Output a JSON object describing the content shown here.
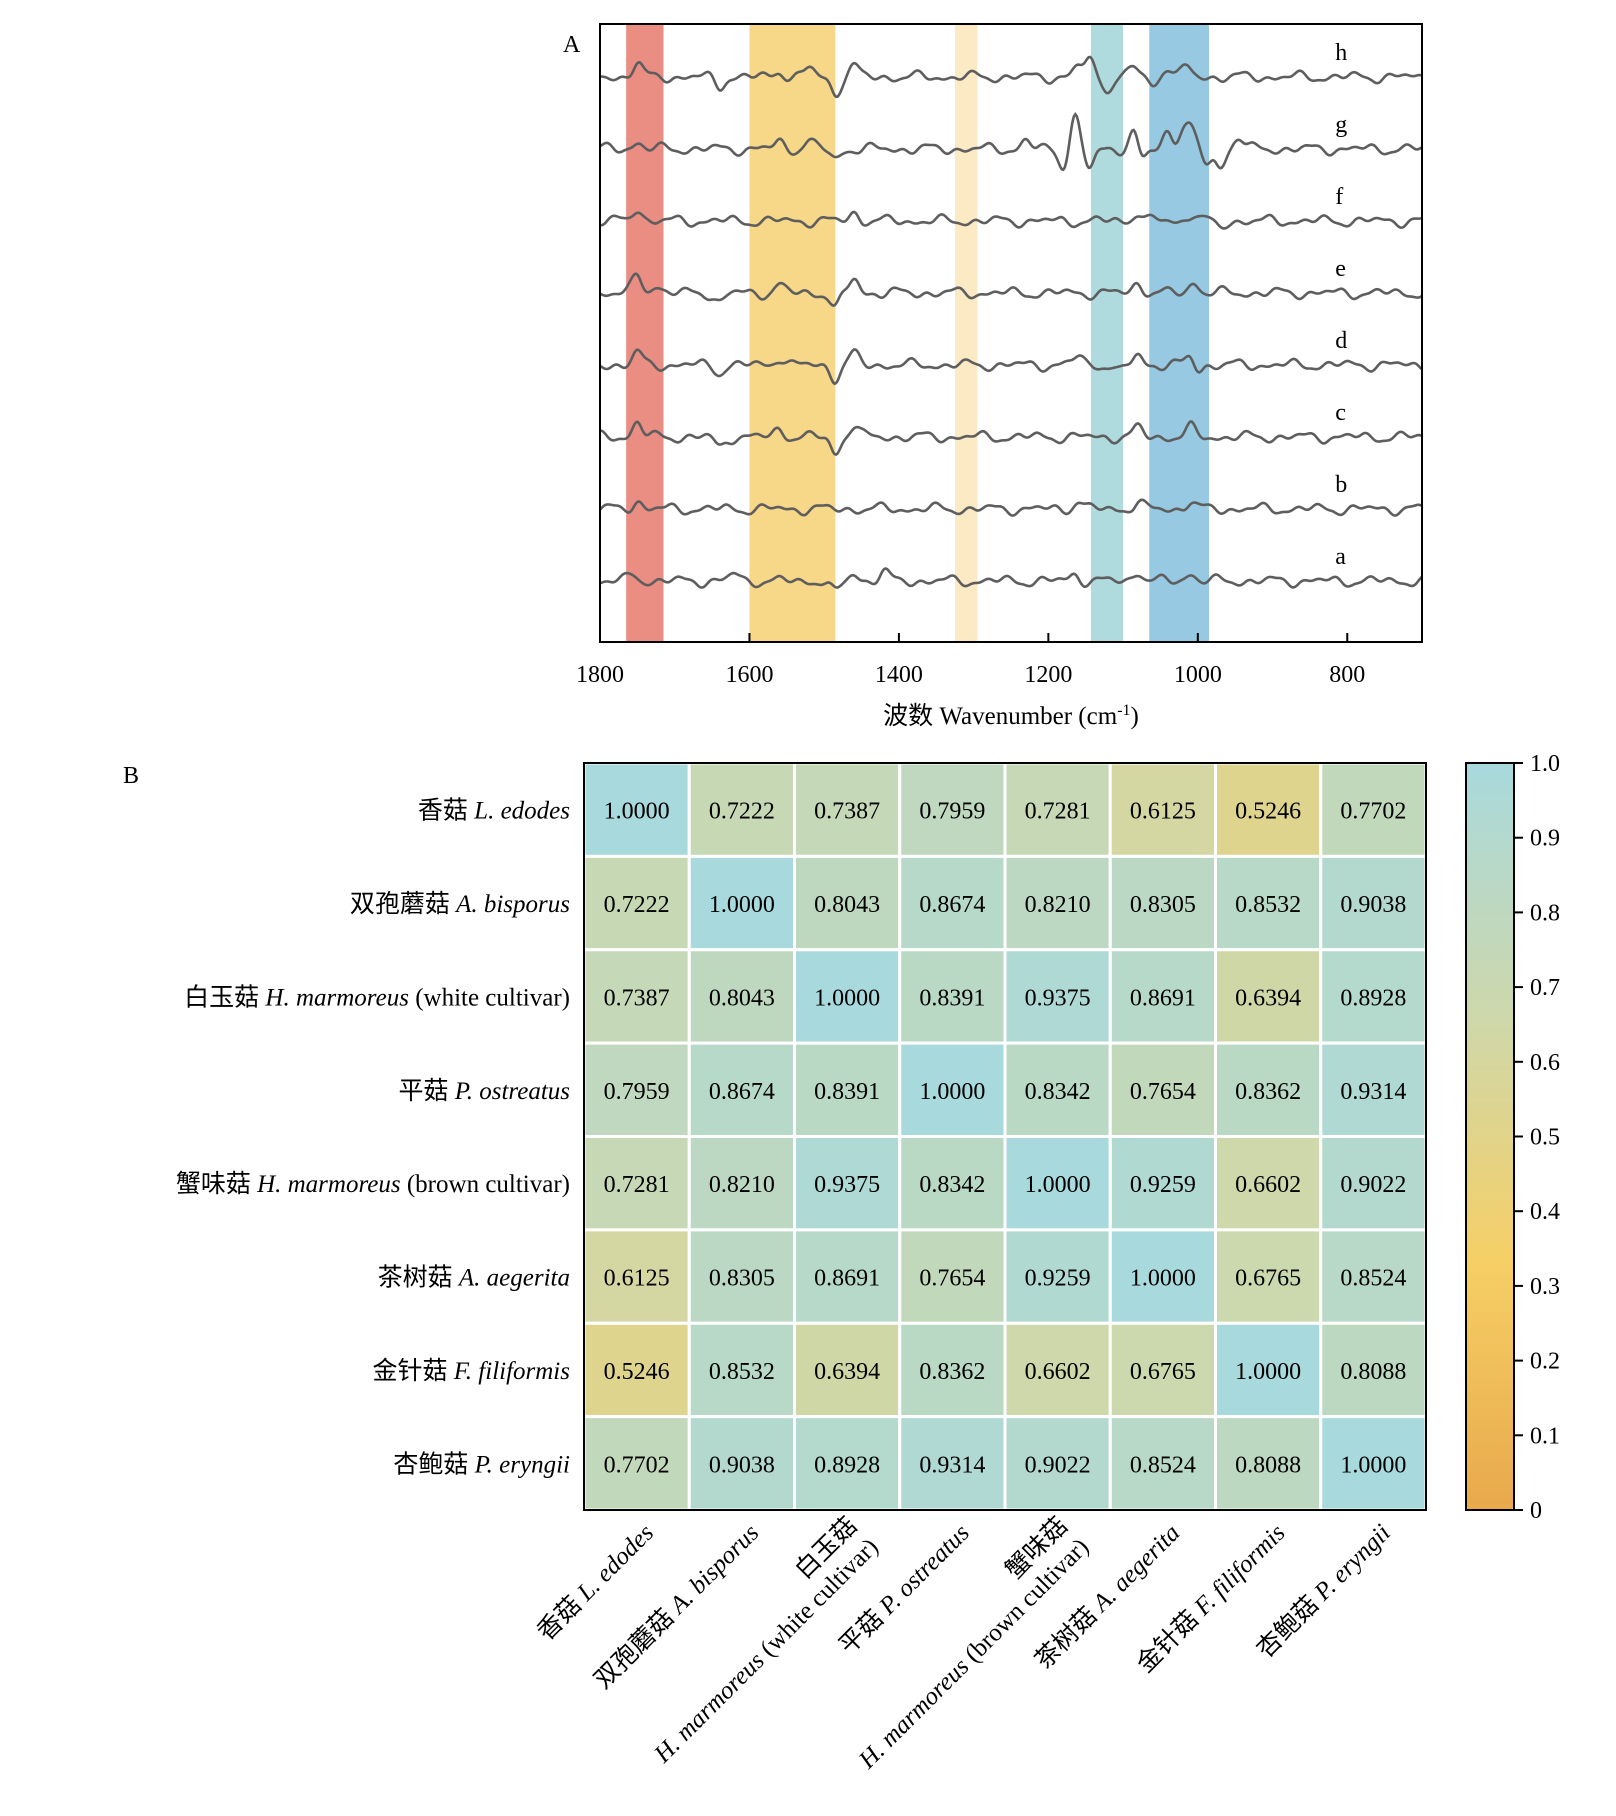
{
  "chart_data": [
    {
      "panel_label": "A",
      "type": "line",
      "xlabel_prefix": "波数 Wavenumber (cm",
      "xlabel_sup": "-1",
      "xlabel_suffix": ")",
      "xlim": [
        1800,
        700
      ],
      "xticks": [
        1800,
        1600,
        1400,
        1200,
        1000,
        800
      ],
      "grid": false,
      "bands": [
        {
          "from": 1765,
          "to": 1715,
          "color": "#e8847a"
        },
        {
          "from": 1600,
          "to": 1485,
          "color": "#f6d47e"
        },
        {
          "from": 1325,
          "to": 1295,
          "color": "#fbe8bf"
        },
        {
          "from": 1143,
          "to": 1100,
          "color": "#a8d8dc"
        },
        {
          "from": 1065,
          "to": 985,
          "color": "#8ec5e0"
        }
      ],
      "series": [
        {
          "name": "h",
          "features": [
            [
              1750,
              14
            ],
            [
              1640,
              -9
            ],
            [
              1560,
              6
            ],
            [
              1520,
              9
            ],
            [
              1485,
              -16
            ],
            [
              1460,
              11
            ],
            [
              1160,
              10
            ],
            [
              1145,
              16
            ],
            [
              1120,
              -12
            ],
            [
              1085,
              10
            ],
            [
              1060,
              -8
            ],
            [
              1040,
              11
            ],
            [
              1015,
              9
            ]
          ]
        },
        {
          "name": "g",
          "features": [
            [
              1750,
              7
            ],
            [
              1560,
              7
            ],
            [
              1520,
              8
            ],
            [
              1485,
              -10
            ],
            [
              1230,
              8
            ],
            [
              1180,
              -18
            ],
            [
              1165,
              34
            ],
            [
              1145,
              -20
            ],
            [
              1085,
              20
            ],
            [
              1075,
              -15
            ],
            [
              1040,
              18
            ],
            [
              1020,
              16
            ],
            [
              1010,
              20
            ],
            [
              990,
              -15
            ],
            [
              970,
              -18
            ],
            [
              945,
              12
            ]
          ]
        },
        {
          "name": "f",
          "features": [
            [
              1750,
              13
            ],
            [
              1460,
              8
            ],
            [
              1080,
              9
            ],
            [
              1005,
              8
            ],
            [
              970,
              -7
            ]
          ]
        },
        {
          "name": "e",
          "features": [
            [
              1750,
              17
            ],
            [
              1725,
              8
            ],
            [
              1640,
              -9
            ],
            [
              1560,
              8
            ],
            [
              1485,
              -15
            ],
            [
              1460,
              14
            ],
            [
              1080,
              10
            ],
            [
              1005,
              11
            ]
          ]
        },
        {
          "name": "d",
          "features": [
            [
              1750,
              12
            ],
            [
              1640,
              -7
            ],
            [
              1560,
              8
            ],
            [
              1485,
              -13
            ],
            [
              1460,
              11
            ],
            [
              1160,
              9
            ],
            [
              1105,
              -7
            ],
            [
              1080,
              10
            ],
            [
              1010,
              9
            ],
            [
              1000,
              -6
            ]
          ]
        },
        {
          "name": "c",
          "features": [
            [
              1750,
              15
            ],
            [
              1640,
              -10
            ],
            [
              1560,
              8
            ],
            [
              1485,
              -16
            ],
            [
              1460,
              12
            ],
            [
              1080,
              9
            ],
            [
              1010,
              9
            ]
          ]
        },
        {
          "name": "b",
          "features": [
            [
              1750,
              8
            ],
            [
              1160,
              8
            ],
            [
              1080,
              6
            ],
            [
              1010,
              7
            ]
          ]
        },
        {
          "name": "a",
          "features": [
            [
              1755,
              6
            ],
            [
              1620,
              7
            ],
            [
              1485,
              -12
            ],
            [
              1460,
              7
            ],
            [
              1420,
              9
            ],
            [
              1165,
              7
            ],
            [
              1080,
              10
            ],
            [
              1010,
              8
            ]
          ]
        }
      ]
    },
    {
      "panel_label": "B",
      "type": "heatmap",
      "row_labels": [
        {
          "cn": "香菇",
          "sci": "L. edodes",
          "extra": ""
        },
        {
          "cn": "双孢蘑菇",
          "sci": "A. bisporus",
          "extra": ""
        },
        {
          "cn": "白玉菇",
          "sci": "H. marmoreus",
          "extra": "(white cultivar)"
        },
        {
          "cn": "平菇",
          "sci": "P. ostreatus",
          "extra": ""
        },
        {
          "cn": "蟹味菇",
          "sci": "H. marmoreus",
          "extra": "(brown cultivar)"
        },
        {
          "cn": "茶树菇",
          "sci": "A. aegerita",
          "extra": ""
        },
        {
          "cn": "金针菇",
          "sci": "F. filiformis",
          "extra": ""
        },
        {
          "cn": "杏鲍菇",
          "sci": "P. eryngii",
          "extra": ""
        }
      ],
      "values": [
        [
          "1.0000",
          "0.7222",
          "0.7387",
          "0.7959",
          "0.7281",
          "0.6125",
          "0.5246",
          "0.7702"
        ],
        [
          "0.7222",
          "1.0000",
          "0.8043",
          "0.8674",
          "0.8210",
          "0.8305",
          "0.8532",
          "0.9038"
        ],
        [
          "0.7387",
          "0.8043",
          "1.0000",
          "0.8391",
          "0.9375",
          "0.8691",
          "0.6394",
          "0.8928"
        ],
        [
          "0.7959",
          "0.8674",
          "0.8391",
          "1.0000",
          "0.8342",
          "0.7654",
          "0.8362",
          "0.9314"
        ],
        [
          "0.7281",
          "0.8210",
          "0.9375",
          "0.8342",
          "1.0000",
          "0.9259",
          "0.6602",
          "0.9022"
        ],
        [
          "0.6125",
          "0.8305",
          "0.8691",
          "0.7654",
          "0.9259",
          "1.0000",
          "0.6765",
          "0.8524"
        ],
        [
          "0.5246",
          "0.8532",
          "0.6394",
          "0.8362",
          "0.6602",
          "0.6765",
          "1.0000",
          "0.8088"
        ],
        [
          "0.7702",
          "0.9038",
          "0.8928",
          "0.9314",
          "0.9022",
          "0.8524",
          "0.8088",
          "1.0000"
        ]
      ],
      "colorbar_ticks": [
        "0",
        "0.1",
        "0.2",
        "0.3",
        "0.4",
        "0.5",
        "0.6",
        "0.7",
        "0.8",
        "0.9",
        "1.0"
      ],
      "colorbar_range": [
        0,
        1
      ],
      "color_stops": [
        "#e8a94c",
        "#f6cf66",
        "#cdd8ac",
        "#a8d9dd"
      ]
    }
  ]
}
